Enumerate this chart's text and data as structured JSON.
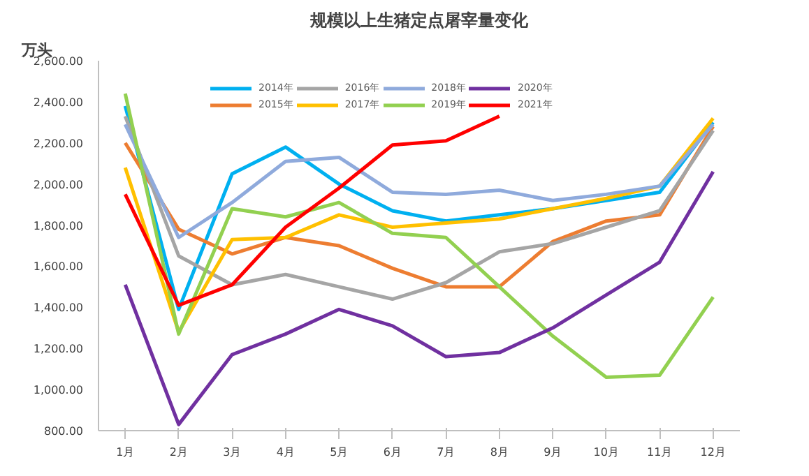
{
  "chart_data": {
    "type": "line",
    "title": "规模以上生猪定点屠宰量变化",
    "ylabel": "万头",
    "categories": [
      "1月",
      "2月",
      "3月",
      "4月",
      "5月",
      "6月",
      "7月",
      "8月",
      "9月",
      "10月",
      "11月",
      "12月"
    ],
    "series": [
      {
        "name": "2014年",
        "color": "#00b0f0",
        "values": [
          2380,
          1390,
          2050,
          2180,
          2000,
          1870,
          1820,
          1850,
          1880,
          1920,
          1960,
          2300
        ]
      },
      {
        "name": "2015年",
        "color": "#ed7d31",
        "values": [
          2200,
          1780,
          1660,
          1740,
          1700,
          1590,
          1500,
          1500,
          1720,
          1820,
          1850,
          2280
        ]
      },
      {
        "name": "2016年",
        "color": "#a5a5a5",
        "values": [
          2330,
          1650,
          1510,
          1560,
          1500,
          1440,
          1520,
          1670,
          1710,
          1790,
          1870,
          2260
        ]
      },
      {
        "name": "2017年",
        "color": "#ffc000",
        "values": [
          2080,
          1280,
          1730,
          1740,
          1850,
          1790,
          1810,
          1830,
          1880,
          1930,
          1990,
          2320
        ]
      },
      {
        "name": "2018年",
        "color": "#8faadc",
        "values": [
          2290,
          1740,
          1910,
          2110,
          2130,
          1960,
          1950,
          1970,
          1920,
          1950,
          1990,
          2290
        ]
      },
      {
        "name": "2019年",
        "color": "#92d050",
        "values": [
          2440,
          1270,
          1880,
          1840,
          1910,
          1760,
          1740,
          1500,
          1260,
          1060,
          1070,
          1450
        ]
      },
      {
        "name": "2020年",
        "color": "#7030a0",
        "values": [
          1510,
          830,
          1170,
          1270,
          1390,
          1310,
          1160,
          1180,
          1300,
          1460,
          1620,
          2060
        ]
      },
      {
        "name": "2021年",
        "color": "#ff0000",
        "values": [
          1950,
          1410,
          1510,
          1790,
          1980,
          2190,
          2210,
          2330,
          null,
          null,
          null,
          null
        ]
      }
    ],
    "ylim": [
      800,
      2600
    ],
    "yticks": [
      {
        "value": 800,
        "label": "800.00"
      },
      {
        "value": 1000,
        "label": "1,000.00"
      },
      {
        "value": 1200,
        "label": "1,200.00"
      },
      {
        "value": 1400,
        "label": "1,400.00"
      },
      {
        "value": 1600,
        "label": "1,600.00"
      },
      {
        "value": 1800,
        "label": "1,800.00"
      },
      {
        "value": 2000,
        "label": "2,000.00"
      },
      {
        "value": 2200,
        "label": "2,200.00"
      },
      {
        "value": 2400,
        "label": "2,400.00"
      },
      {
        "value": 2600,
        "label": "2,600.00"
      }
    ],
    "grid": false,
    "legend": "top",
    "marker": "none",
    "line_style": "solid"
  }
}
